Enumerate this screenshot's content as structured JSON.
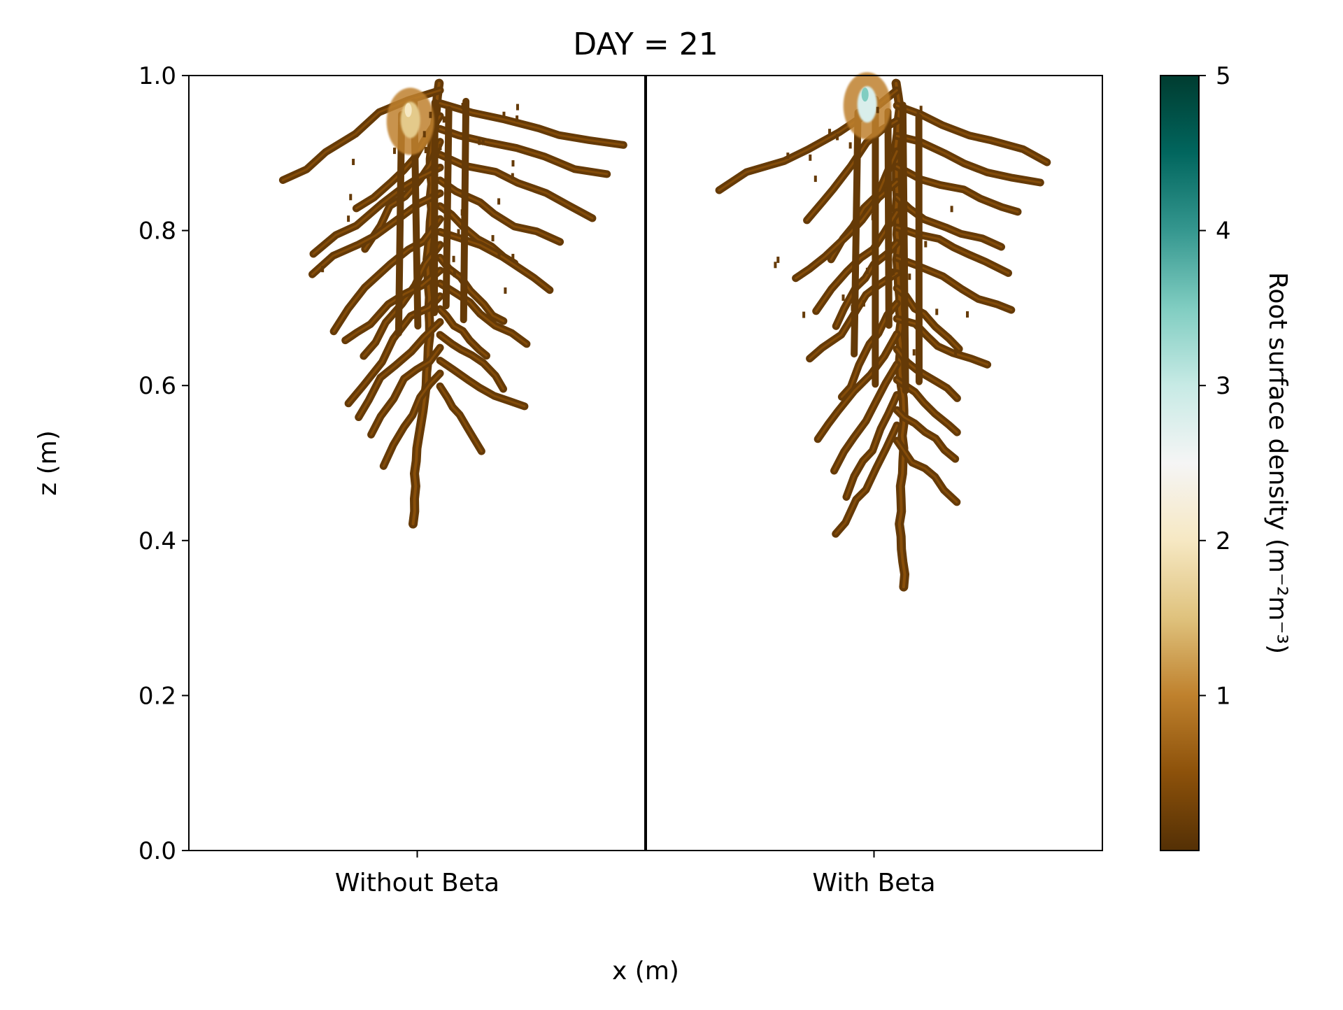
{
  "chart_data": {
    "type": "heatmap",
    "title": "DAY = 21",
    "xlabel": "x (m)",
    "ylabel": "z (m)",
    "ylim": [
      0.0,
      1.0
    ],
    "yticks": [
      "0.0",
      "0.2",
      "0.4",
      "0.6",
      "0.8",
      "1.0"
    ],
    "categories": [
      "Without Beta",
      "With Beta"
    ],
    "colorbar": {
      "label": "Root surface density (m⁻²m⁻³)",
      "range": [
        0,
        5
      ],
      "ticks": [
        "1",
        "2",
        "3",
        "4",
        "5"
      ],
      "colormap": "BrBG",
      "colors": [
        "#543005",
        "#8c510a",
        "#bf812d",
        "#dfc27d",
        "#f6e8c3",
        "#f5f5f5",
        "#c7eae5",
        "#80cdc1",
        "#35978f",
        "#01665e",
        "#003c30"
      ]
    },
    "panels": [
      {
        "name": "Without Beta",
        "root_tip_depth_z": 0.41,
        "branching_zone_z": [
          0.77,
          0.99
        ],
        "peak_density_z": 0.95,
        "peak_density_value": 2.0
      },
      {
        "name": "With Beta",
        "root_tip_depth_z": 0.34,
        "branching_zone_z": [
          0.7,
          0.99
        ],
        "peak_density_z": 0.97,
        "peak_density_value": 3.5
      }
    ],
    "grid": false,
    "legend": "colorbar-right"
  }
}
